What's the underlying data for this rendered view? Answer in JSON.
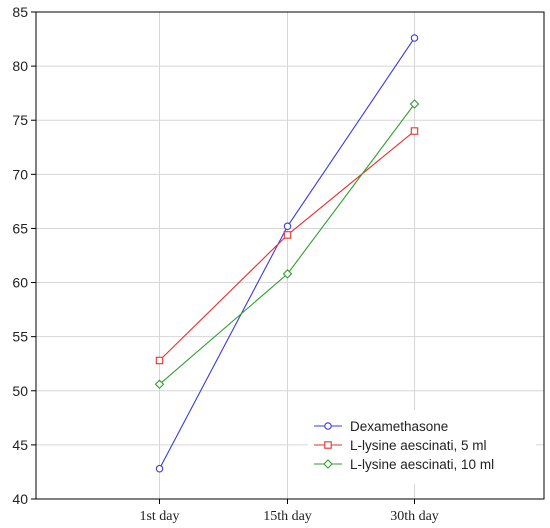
{
  "chart_data": {
    "type": "line",
    "categories": [
      "1st day",
      "15th day",
      "30th day"
    ],
    "ylim": [
      40,
      85
    ],
    "y_ticks": [
      40,
      45,
      50,
      55,
      60,
      65,
      70,
      75,
      80,
      85
    ],
    "grid": true,
    "legend_position": "bottom-right",
    "series": [
      {
        "name": "Dexamethasone",
        "values": [
          42.8,
          65.2,
          82.6
        ],
        "color": "#3b3bdb",
        "marker": "circle"
      },
      {
        "name": "L-lysine aescinati, 5 ml",
        "values": [
          52.8,
          64.4,
          74.0
        ],
        "color": "#e8302f",
        "marker": "square"
      },
      {
        "name": "L-lysine aescinati, 10 ml",
        "values": [
          50.6,
          60.8,
          76.5
        ],
        "color": "#2e9e2e",
        "marker": "diamond"
      }
    ]
  }
}
